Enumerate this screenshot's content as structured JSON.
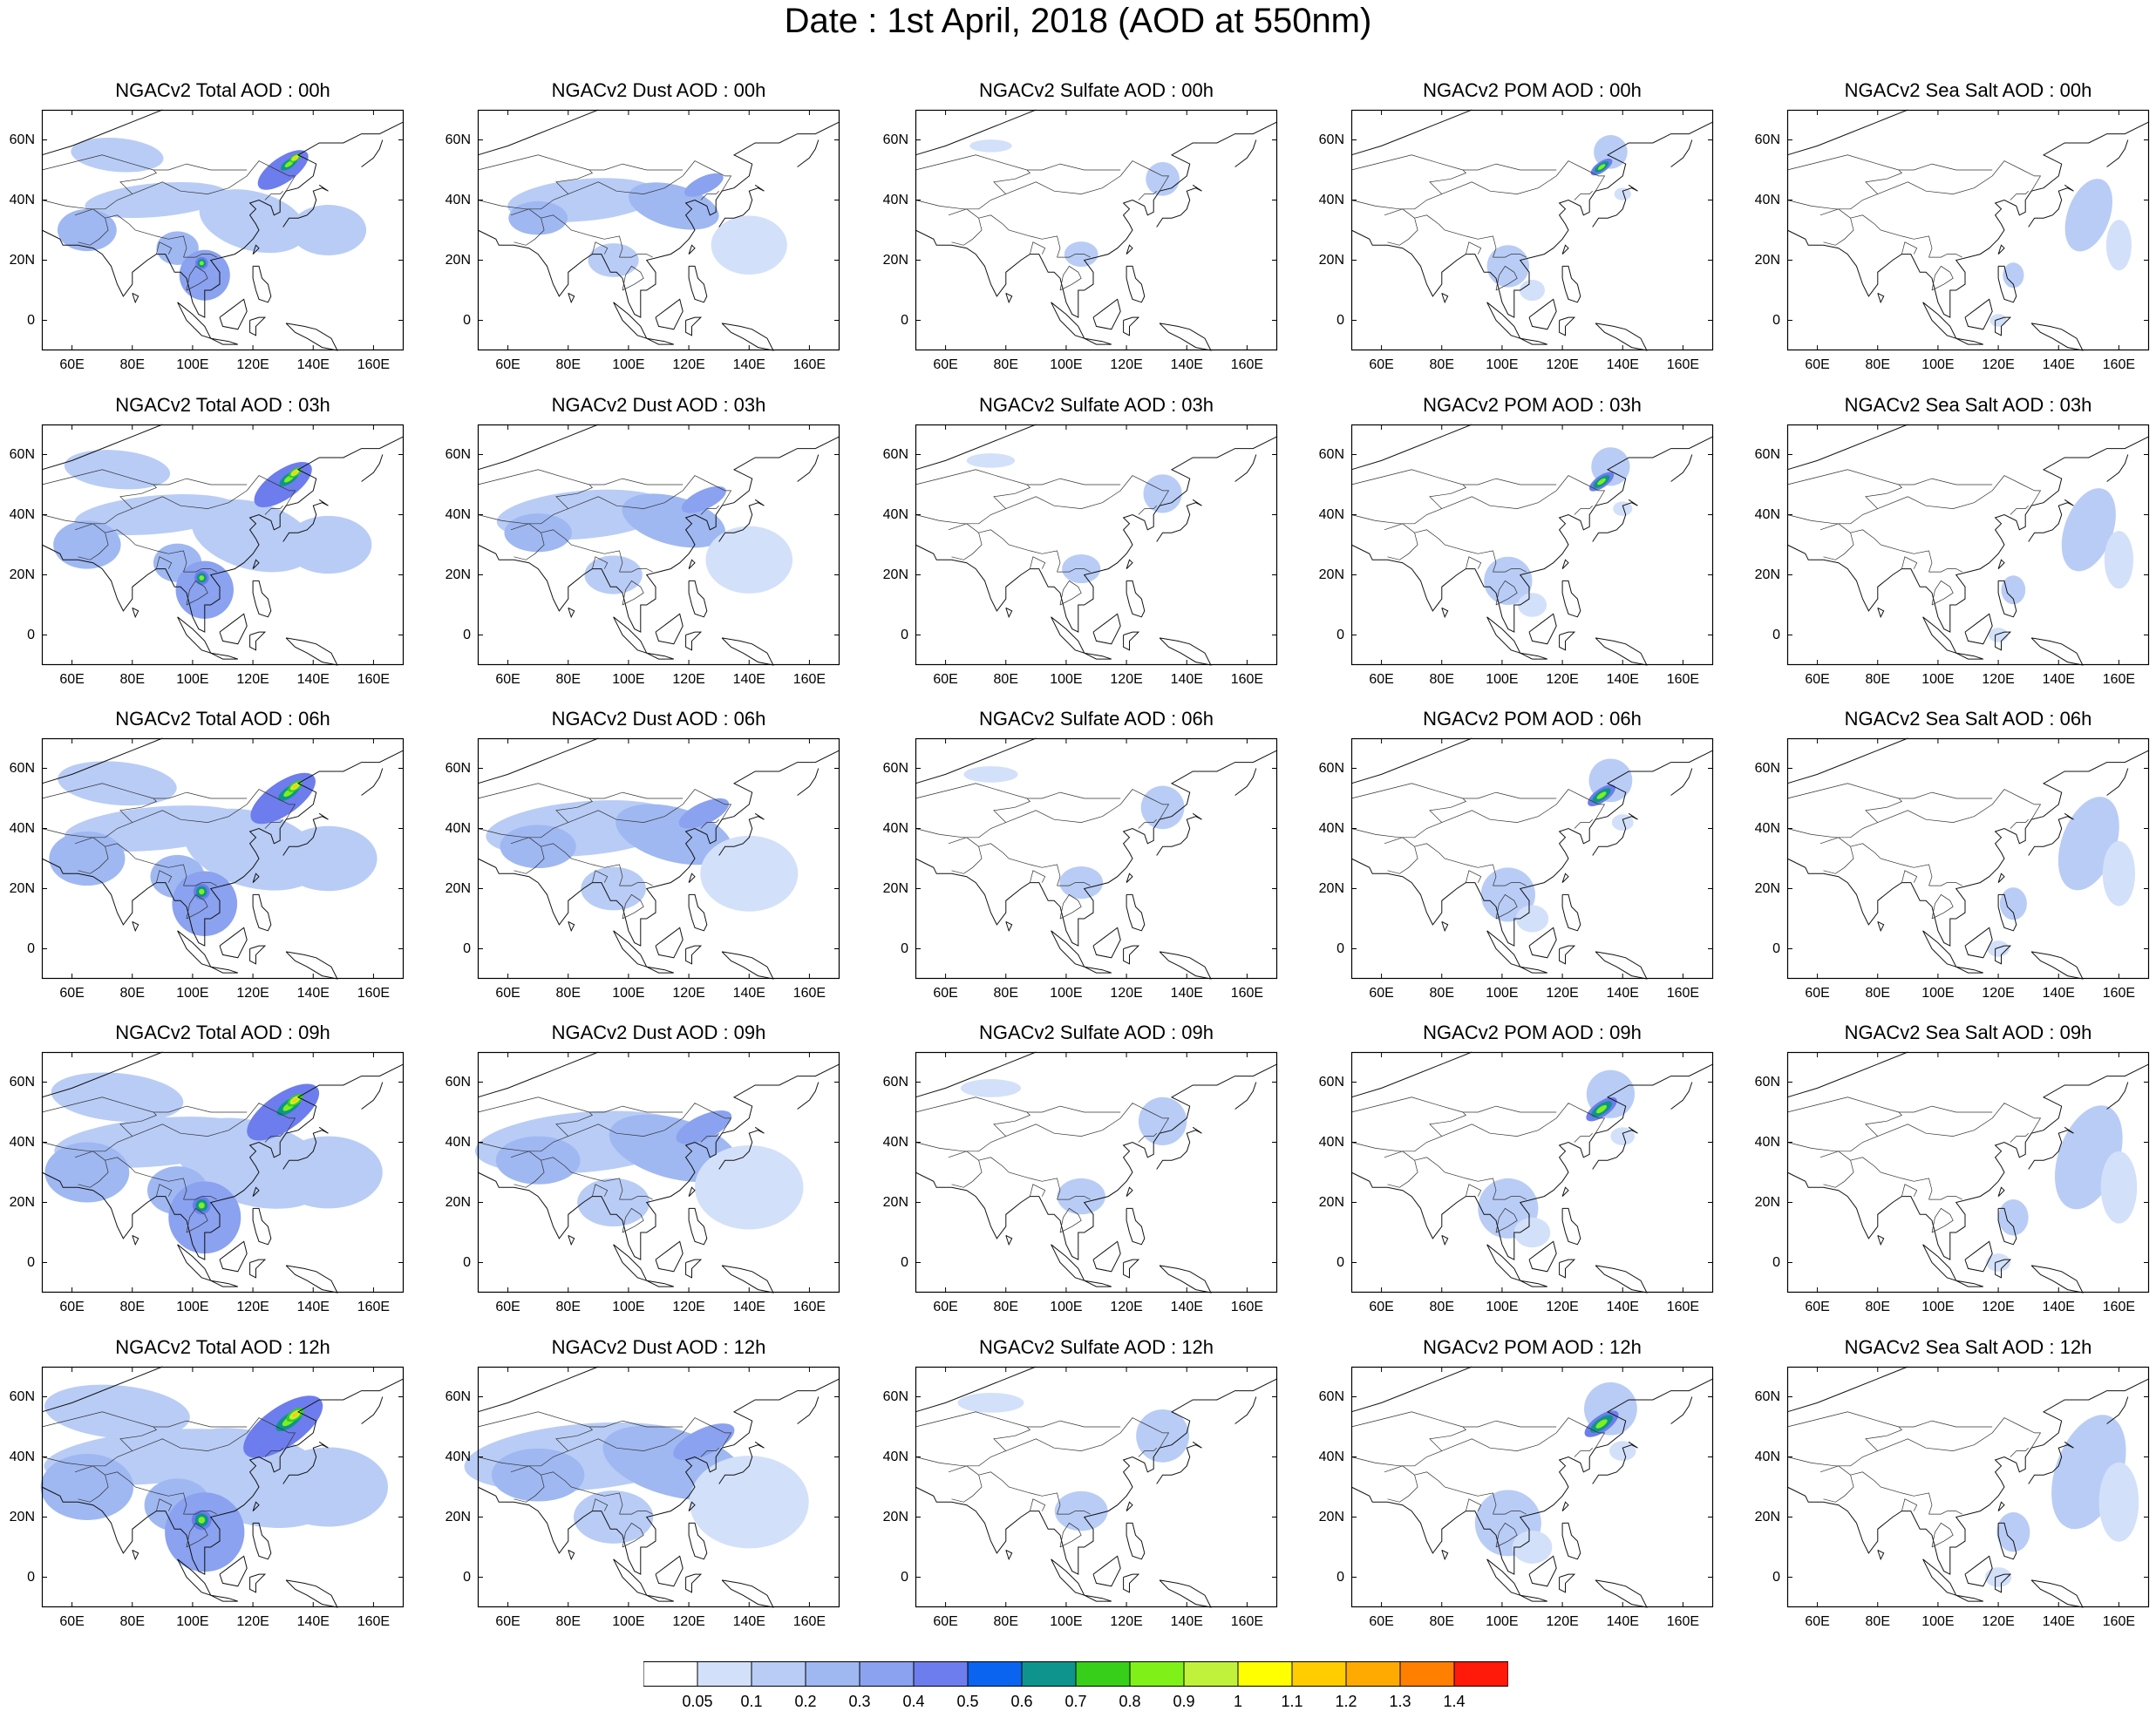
{
  "header": {
    "title": "Date : 1st April, 2018 (AOD at 550nm)"
  },
  "panels": [
    [
      "NGACv2 Total AOD : 00h",
      "NGACv2 Dust AOD : 00h",
      "NGACv2 Sulfate AOD : 00h",
      "NGACv2 POM AOD : 00h",
      "NGACv2 Sea Salt AOD : 00h"
    ],
    [
      "NGACv2 Total AOD : 03h",
      "NGACv2 Dust AOD : 03h",
      "NGACv2 Sulfate AOD : 03h",
      "NGACv2 POM AOD : 03h",
      "NGACv2 Sea Salt AOD : 03h"
    ],
    [
      "NGACv2 Total AOD : 06h",
      "NGACv2 Dust AOD : 06h",
      "NGACv2 Sulfate AOD : 06h",
      "NGACv2 POM AOD : 06h",
      "NGACv2 Sea Salt AOD : 06h"
    ],
    [
      "NGACv2 Total AOD : 09h",
      "NGACv2 Dust AOD : 09h",
      "NGACv2 Sulfate AOD : 09h",
      "NGACv2 POM AOD : 09h",
      "NGACv2 Sea Salt  AOD : 09h"
    ],
    [
      "NGACv2 Total AOD  : 12h",
      "NGACv2 Dust AOD : 12h",
      "NGACv2 Sulfate AOD : 12h",
      "NGACv2 POM  AOD : 12h",
      "NGACv2 Sea Salt  AOD : 12h"
    ]
  ],
  "axes": {
    "lon_ticks": [
      "60E",
      "80E",
      "100E",
      "120E",
      "140E",
      "160E"
    ],
    "lat_ticks": [
      "60N",
      "40N",
      "20N",
      "0"
    ]
  },
  "colorbar": {
    "colors": [
      "#ffffff",
      "#d3e0fa",
      "#b8ccf6",
      "#9fb8f2",
      "#8aa2ef",
      "#6d7ded",
      "#0a64f0",
      "#0f948d",
      "#37cf1a",
      "#7ff018",
      "#c0f23c",
      "#ffff00",
      "#ffcc00",
      "#ffaa00",
      "#ff7f00",
      "#ff1a0a"
    ],
    "labels": [
      "0.05",
      "0.1",
      "0.2",
      "0.3",
      "0.4",
      "0.5",
      "0.6",
      "0.7",
      "0.8",
      "0.9",
      "1",
      "1.1",
      "1.2",
      "1.3",
      "1.4"
    ]
  }
}
